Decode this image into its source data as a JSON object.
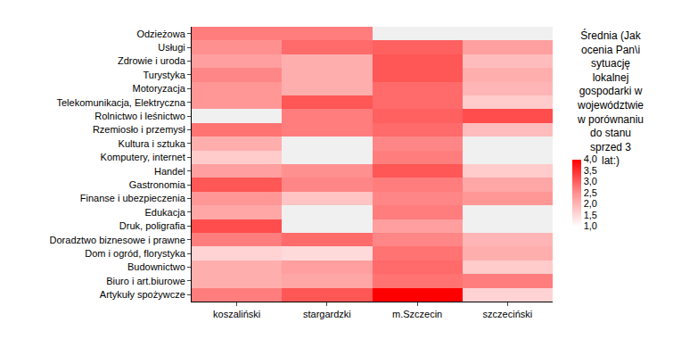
{
  "chart_data": {
    "type": "heatmap",
    "x": [
      "koszaliński",
      "stargardzki",
      "m.Szczecin",
      "szczeciński"
    ],
    "y": [
      "Odzieżowa",
      "Usługi",
      "Zdrowie i uroda",
      "Turystyka",
      "Motoryzacja",
      "Telekomunikacja, Elektryczna",
      "Rolnictwo i leśnictwo",
      "Rzemiosło i przemysł",
      "Kultura i sztuka",
      "Komputery, internet",
      "Handel",
      "Gastronomia",
      "Finanse i ubezpieczenia",
      "Edukacja",
      "Druk, poligrafia",
      "Doradztwo biznesowe i prawne",
      "Dom i ogród, florystyka",
      "Budownictwo",
      "Biuro i art.biurowe",
      "Artykuły spożywcze"
    ],
    "cells": [
      [
        2.7,
        2.7,
        null,
        null
      ],
      [
        2.5,
        2.9,
        3.0,
        2.3
      ],
      [
        2.3,
        2.1,
        3.1,
        1.9
      ],
      [
        2.6,
        2.1,
        3.1,
        2.1
      ],
      [
        2.4,
        2.1,
        2.9,
        2.0
      ],
      [
        2.4,
        3.1,
        2.9,
        1.7
      ],
      [
        null,
        2.7,
        3.0,
        3.2
      ],
      [
        2.8,
        2.7,
        2.9,
        1.9
      ],
      [
        2.1,
        null,
        2.6,
        null
      ],
      [
        1.7,
        null,
        2.7,
        null
      ],
      [
        2.3,
        2.5,
        3.1,
        1.7
      ],
      [
        3.1,
        2.6,
        2.7,
        2.2
      ],
      [
        2.4,
        1.8,
        2.6,
        2.4
      ],
      [
        2.2,
        null,
        2.7,
        null
      ],
      [
        3.2,
        null,
        2.3,
        null
      ],
      [
        2.7,
        2.9,
        2.6,
        2.0
      ],
      [
        1.6,
        1.5,
        2.8,
        2.1
      ],
      [
        2.1,
        2.3,
        2.9,
        1.7
      ],
      [
        2.1,
        2.2,
        2.8,
        2.7
      ],
      [
        2.7,
        3.1,
        4.0,
        1.6
      ]
    ],
    "colorbar_title": "Średnia (Jak ocenia Pan\\i sytuację lokalnej gospodarki w województwie w porównaniu do stanu sprzed 3 lat:)",
    "color_range": [
      1.0,
      4.0
    ],
    "color_ticks": [
      {
        "value": 4.0,
        "label": "4,0"
      },
      {
        "value": 3.5,
        "label": "3,5"
      },
      {
        "value": 3.0,
        "label": "3,0"
      },
      {
        "value": 2.5,
        "label": "2,5"
      },
      {
        "value": 2.0,
        "label": "2,0"
      },
      {
        "value": 1.5,
        "label": "1,5"
      },
      {
        "value": 1.0,
        "label": "1,0"
      }
    ]
  }
}
